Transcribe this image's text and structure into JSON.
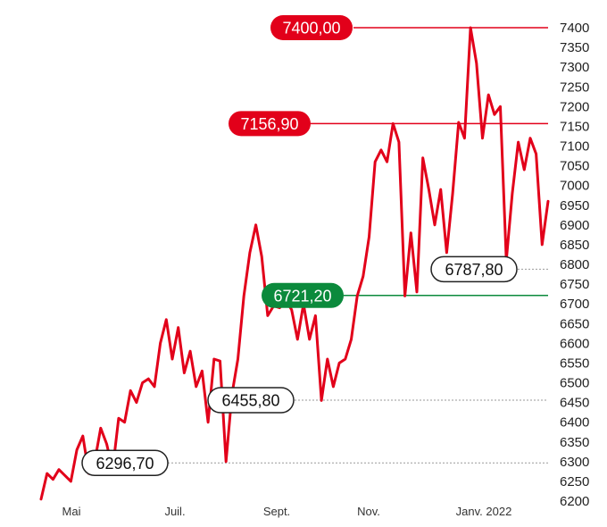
{
  "chart_data": {
    "type": "line",
    "series": [
      {
        "color": "#e2001a",
        "values": [
          6205,
          6270,
          6255,
          6280,
          6265,
          6250,
          6330,
          6365,
          6270,
          6300,
          6385,
          6345,
          6280,
          6410,
          6400,
          6480,
          6450,
          6500,
          6510,
          6490,
          6600,
          6660,
          6560,
          6640,
          6525,
          6580,
          6490,
          6530,
          6400,
          6560,
          6555,
          6300,
          6470,
          6560,
          6720,
          6830,
          6900,
          6820,
          6670,
          6695,
          6690,
          6710,
          6685,
          6610,
          6700,
          6610,
          6670,
          6455,
          6560,
          6490,
          6550,
          6560,
          6610,
          6720,
          6770,
          6870,
          7060,
          7090,
          7060,
          7157,
          7110,
          6720,
          6880,
          6730,
          7070,
          6990,
          6900,
          6990,
          6830,
          6980,
          7160,
          7120,
          7400,
          7310,
          7120,
          7230,
          7180,
          7200,
          6810,
          6980,
          7110,
          7040,
          7120,
          7080,
          6850,
          6960
        ]
      }
    ],
    "y_ticks": [
      "7400",
      "7350",
      "7300",
      "7250",
      "7200",
      "7150",
      "7100",
      "7050",
      "7000",
      "6950",
      "6900",
      "6850",
      "6800",
      "6750",
      "6700",
      "6650",
      "6600",
      "6550",
      "6500",
      "6450",
      "6400",
      "6350",
      "6300",
      "6250",
      "6200"
    ],
    "ylim": [
      6200,
      7400
    ],
    "x_ticks": [
      "Mai",
      "Juil.",
      "Sept.",
      "Nov.",
      "Janv. 2022"
    ],
    "annotations": [
      {
        "label": "7400,00",
        "value": 7400,
        "style": "red",
        "line": "solid"
      },
      {
        "label": "7156,90",
        "value": 7156.9,
        "style": "red",
        "line": "solid"
      },
      {
        "label": "6721,20",
        "value": 6721.2,
        "style": "green",
        "line": "solid"
      },
      {
        "label": "6787,80",
        "value": 6787.8,
        "style": "outline",
        "line": "dotted"
      },
      {
        "label": "6455,80",
        "value": 6455.8,
        "style": "outline",
        "line": "dotted"
      },
      {
        "label": "6296,70",
        "value": 6296.7,
        "style": "outline",
        "line": "dotted"
      }
    ],
    "colors": {
      "line": "#e2001a",
      "red_badge": "#e2001a",
      "green_badge": "#0b8a3c",
      "outline_badge_border": "#222222",
      "dotted_line": "#999999"
    }
  }
}
